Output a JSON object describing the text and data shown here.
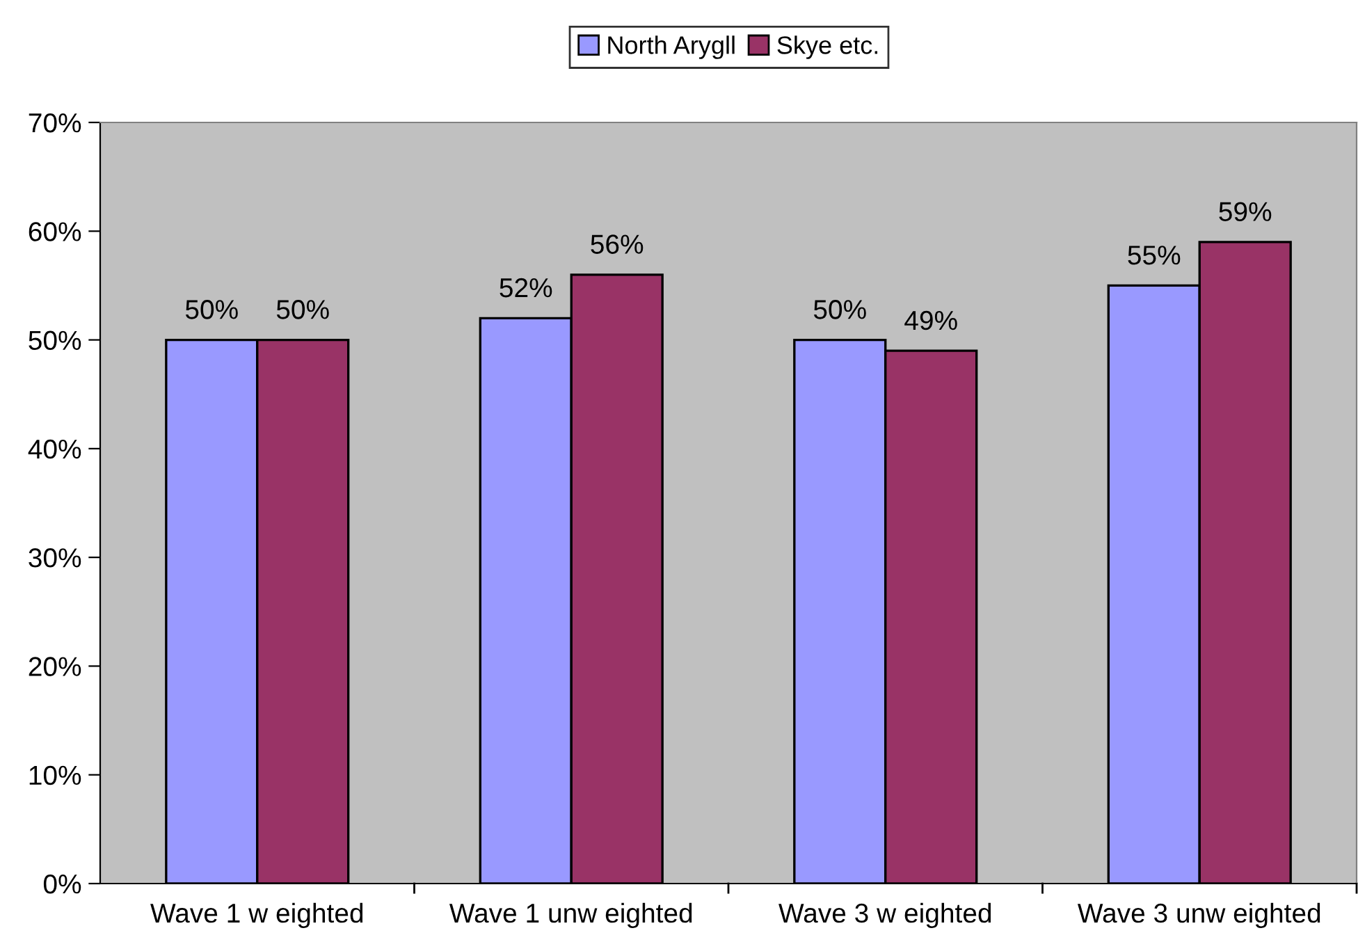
{
  "chart_data": {
    "type": "bar",
    "categories": [
      "Wave 1 w eighted",
      "Wave 1 unw eighted",
      "Wave 3 w eighted",
      "Wave 3 unw eighted"
    ],
    "series": [
      {
        "name": "North Arygll",
        "color": "#9999ff",
        "values": [
          50,
          52,
          50,
          55
        ],
        "value_labels": [
          "50%",
          "52%",
          "50%",
          "55%"
        ]
      },
      {
        "name": "Skye etc.",
        "color": "#993366",
        "values": [
          50,
          56,
          49,
          59
        ],
        "value_labels": [
          "50%",
          "56%",
          "49%",
          "59%"
        ]
      }
    ],
    "ylim": [
      0,
      70
    ],
    "yticks": [
      {
        "value": 0,
        "label": "0%"
      },
      {
        "value": 10,
        "label": "10%"
      },
      {
        "value": 20,
        "label": "20%"
      },
      {
        "value": 30,
        "label": "30%"
      },
      {
        "value": 40,
        "label": "40%"
      },
      {
        "value": 50,
        "label": "50%"
      },
      {
        "value": 60,
        "label": "60%"
      },
      {
        "value": 70,
        "label": "70%"
      }
    ],
    "grid": false,
    "legend": "top"
  }
}
